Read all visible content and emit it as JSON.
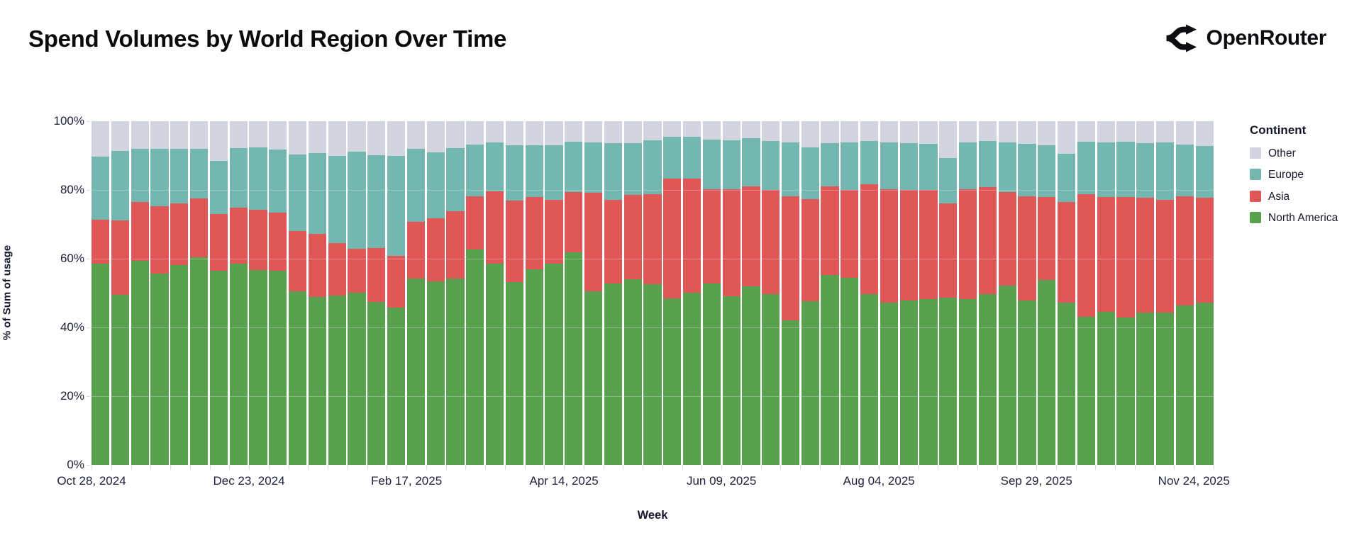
{
  "header": {
    "title": "Spend Volumes by World Region Over Time",
    "brand": "OpenRouter"
  },
  "legend": {
    "title": "Continent",
    "items": [
      {
        "label": "Other",
        "color": "#d2d4e0"
      },
      {
        "label": "Europe",
        "color": "#74b6b0"
      },
      {
        "label": "Asia",
        "color": "#e05758"
      },
      {
        "label": "North America",
        "color": "#59a14f"
      }
    ]
  },
  "axes": {
    "x_title": "Week",
    "y_title": "% of Sum of usage"
  },
  "chart_data": {
    "type": "bar",
    "stacked": true,
    "title": "Spend Volumes by World Region Over Time",
    "xlabel": "Week",
    "ylabel": "% of Sum of usage",
    "ylim": [
      0,
      100
    ],
    "grid": true,
    "legend_position": "right",
    "y_ticks": [
      "0%",
      "20%",
      "40%",
      "60%",
      "80%",
      "100%"
    ],
    "x_tick_labels": [
      "Oct 28, 2024",
      "Dec 23, 2024",
      "Feb 17, 2025",
      "Apr 14, 2025",
      "Jun 09, 2025",
      "Aug 04, 2025",
      "Sep 29, 2025",
      "Nov 24, 2025"
    ],
    "categories": [
      "Oct 28, 2024",
      "Nov 04, 2024",
      "Nov 11, 2024",
      "Nov 18, 2024",
      "Nov 25, 2024",
      "Dec 02, 2024",
      "Dec 09, 2024",
      "Dec 16, 2024",
      "Dec 23, 2024",
      "Dec 30, 2024",
      "Jan 06, 2025",
      "Jan 13, 2025",
      "Jan 20, 2025",
      "Jan 27, 2025",
      "Feb 03, 2025",
      "Feb 10, 2025",
      "Feb 17, 2025",
      "Feb 24, 2025",
      "Mar 03, 2025",
      "Mar 10, 2025",
      "Mar 17, 2025",
      "Mar 24, 2025",
      "Mar 31, 2025",
      "Apr 07, 2025",
      "Apr 14, 2025",
      "Apr 21, 2025",
      "Apr 28, 2025",
      "May 05, 2025",
      "May 12, 2025",
      "May 19, 2025",
      "May 26, 2025",
      "Jun 02, 2025",
      "Jun 09, 2025",
      "Jun 16, 2025",
      "Jun 23, 2025",
      "Jun 30, 2025",
      "Jul 07, 2025",
      "Jul 14, 2025",
      "Jul 21, 2025",
      "Jul 28, 2025",
      "Aug 04, 2025",
      "Aug 11, 2025",
      "Aug 18, 2025",
      "Aug 25, 2025",
      "Sep 01, 2025",
      "Sep 08, 2025",
      "Sep 15, 2025",
      "Sep 22, 2025",
      "Sep 29, 2025",
      "Oct 06, 2025",
      "Oct 13, 2025",
      "Oct 20, 2025",
      "Oct 27, 2025",
      "Nov 03, 2025",
      "Nov 10, 2025",
      "Nov 17, 2025",
      "Nov 24, 2025"
    ],
    "series": [
      {
        "name": "North America",
        "color": "#59a14f",
        "values": [
          58.5,
          49.5,
          59.3,
          55.6,
          58.2,
          60.5,
          56.4,
          58.5,
          56.6,
          56.4,
          50.6,
          48.9,
          49.3,
          50.0,
          47.4,
          45.8,
          54.3,
          53.5,
          54.3,
          62.6,
          58.5,
          53.1,
          57.0,
          58.5,
          61.9,
          50.5,
          52.8,
          54.0,
          52.5,
          48.4,
          50.0,
          52.8,
          49.0,
          52.0,
          49.7,
          42.0,
          47.6,
          55.2,
          54.5,
          49.7,
          47.2,
          47.8,
          48.3,
          48.7,
          48.2,
          49.7,
          52.2,
          47.8,
          53.8,
          47.2,
          43.0,
          44.6,
          42.9,
          44.3,
          44.4,
          46.3,
          47.2
        ]
      },
      {
        "name": "Asia",
        "color": "#e05758",
        "values": [
          12.8,
          21.7,
          17.2,
          19.6,
          17.9,
          17.0,
          16.5,
          16.4,
          17.7,
          16.9,
          17.5,
          18.3,
          15.3,
          12.9,
          15.7,
          15.0,
          16.5,
          18.2,
          19.6,
          15.5,
          21.1,
          23.8,
          20.9,
          18.7,
          17.5,
          28.6,
          24.4,
          24.6,
          26.2,
          34.8,
          33.3,
          27.5,
          31.3,
          29.0,
          30.2,
          36.1,
          29.7,
          25.8,
          25.4,
          31.9,
          33.1,
          32.3,
          31.7,
          27.4,
          32.1,
          31.1,
          27.2,
          30.3,
          24.1,
          29.3,
          35.7,
          33.3,
          35.1,
          33.4,
          32.7,
          31.8,
          30.6
        ]
      },
      {
        "name": "Europe",
        "color": "#74b6b0",
        "values": [
          18.3,
          20.1,
          15.5,
          16.8,
          15.9,
          14.5,
          15.6,
          17.3,
          18.0,
          18.5,
          22.2,
          23.6,
          25.4,
          28.2,
          27.0,
          29.1,
          21.2,
          19.3,
          18.3,
          15.1,
          14.3,
          16.0,
          15.1,
          15.8,
          14.7,
          14.8,
          16.4,
          15.1,
          15.8,
          12.3,
          12.2,
          14.3,
          14.1,
          14.0,
          14.4,
          15.8,
          15.1,
          12.6,
          14.0,
          12.7,
          13.5,
          13.5,
          13.4,
          13.1,
          13.6,
          13.5,
          14.4,
          15.3,
          15.0,
          14.1,
          15.4,
          15.9,
          16.0,
          16.0,
          16.7,
          15.1,
          14.9
        ]
      },
      {
        "name": "Other",
        "color": "#d2d4e0",
        "values": [
          10.4,
          8.7,
          8.0,
          8.0,
          8.0,
          8.0,
          11.5,
          7.8,
          7.7,
          8.2,
          9.7,
          9.2,
          10.0,
          8.9,
          9.9,
          10.1,
          8.0,
          9.0,
          7.8,
          6.8,
          6.1,
          7.1,
          7.0,
          7.0,
          5.9,
          6.1,
          6.4,
          6.3,
          5.5,
          4.5,
          4.5,
          5.4,
          5.6,
          5.0,
          5.7,
          6.1,
          7.6,
          6.4,
          6.1,
          5.7,
          6.2,
          6.4,
          6.6,
          10.8,
          6.1,
          5.7,
          6.2,
          6.6,
          7.1,
          9.4,
          5.9,
          6.2,
          6.0,
          6.3,
          6.2,
          6.8,
          7.3
        ]
      }
    ]
  }
}
